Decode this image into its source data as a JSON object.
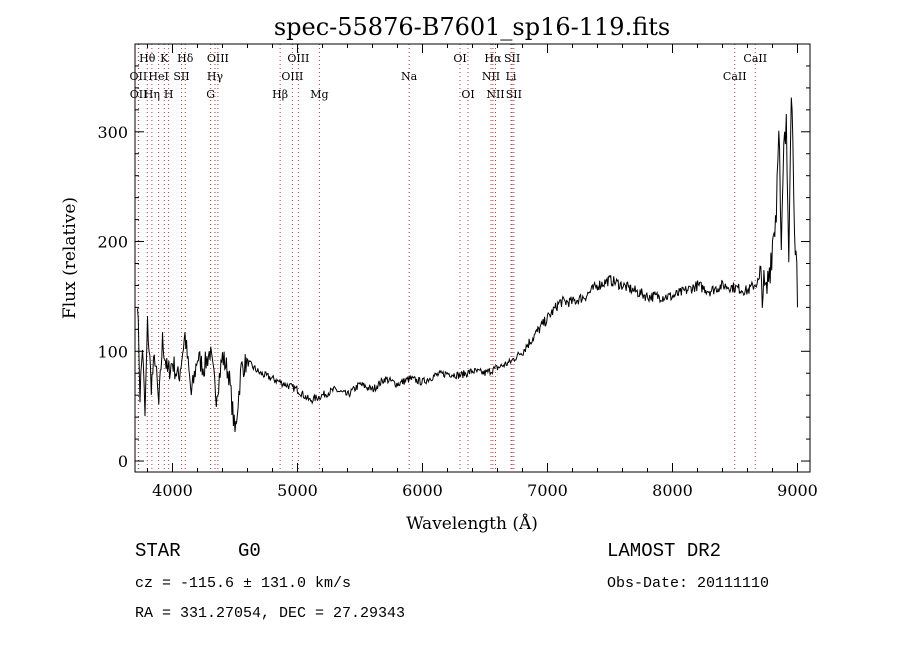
{
  "chart_data": {
    "type": "line",
    "title": "spec-55876-B7601_sp16-119.fits",
    "xlabel": "Wavelength (Å)",
    "ylabel": "Flux (relative)",
    "xlim": [
      3700,
      9100
    ],
    "ylim": [
      -10,
      380
    ],
    "xticks": [
      4000,
      5000,
      6000,
      7000,
      8000,
      9000
    ],
    "yticks": [
      0,
      100,
      200,
      300
    ],
    "series": [
      {
        "name": "flux",
        "x": [
          3720,
          3740,
          3760,
          3780,
          3800,
          3830,
          3860,
          3890,
          3920,
          3960,
          4000,
          4050,
          4100,
          4150,
          4200,
          4250,
          4300,
          4350,
          4400,
          4450,
          4500,
          4550,
          4600,
          4700,
          4800,
          4900,
          5000,
          5100,
          5200,
          5300,
          5400,
          5500,
          5600,
          5700,
          5800,
          5900,
          6000,
          6100,
          6200,
          6300,
          6400,
          6500,
          6600,
          6700,
          6800,
          6900,
          7000,
          7100,
          7200,
          7300,
          7400,
          7500,
          7600,
          7700,
          7800,
          7900,
          8000,
          8100,
          8200,
          8300,
          8400,
          8500,
          8600,
          8700,
          8750,
          8800,
          8830,
          8850,
          8870,
          8890,
          8910,
          8930,
          8950,
          8970,
          9000
        ],
        "values": [
          150,
          60,
          105,
          40,
          125,
          70,
          95,
          50,
          110,
          80,
          90,
          75,
          115,
          60,
          95,
          85,
          100,
          60,
          95,
          80,
          25,
          85,
          90,
          80,
          75,
          70,
          65,
          55,
          60,
          65,
          60,
          70,
          65,
          75,
          70,
          75,
          72,
          78,
          80,
          78,
          82,
          80,
          85,
          90,
          100,
          115,
          130,
          145,
          145,
          150,
          160,
          165,
          160,
          155,
          150,
          150,
          150,
          155,
          160,
          155,
          160,
          158,
          155,
          165,
          150,
          200,
          230,
          320,
          180,
          280,
          300,
          200,
          350,
          250,
          140
        ]
      }
    ],
    "lines": [
      {
        "label": "Hθ",
        "x": 3798,
        "row": 0
      },
      {
        "label": "K",
        "x": 3934,
        "row": 0
      },
      {
        "label": "Hδ",
        "x": 4102,
        "row": 0
      },
      {
        "label": "OIII",
        "x": 4363,
        "row": 0
      },
      {
        "label": "OIII",
        "x": 5007,
        "row": 0
      },
      {
        "label": "OI",
        "x": 6300,
        "row": 0
      },
      {
        "label": "Hα",
        "x": 6563,
        "row": 0
      },
      {
        "label": "SII",
        "x": 6717,
        "row": 0
      },
      {
        "label": "CaII",
        "x": 8662,
        "row": 0
      },
      {
        "label": "OII",
        "x": 3727,
        "row": 1
      },
      {
        "label": "HeI",
        "x": 3889,
        "row": 1
      },
      {
        "label": "SII",
        "x": 4072,
        "row": 1
      },
      {
        "label": "Hγ",
        "x": 4340,
        "row": 1
      },
      {
        "label": "OIII",
        "x": 4959,
        "row": 1
      },
      {
        "label": "Na",
        "x": 5893,
        "row": 1
      },
      {
        "label": "NII",
        "x": 6548,
        "row": 1
      },
      {
        "label": "Li",
        "x": 6708,
        "row": 1
      },
      {
        "label": "CaII",
        "x": 8498,
        "row": 1
      },
      {
        "label": "OII",
        "x": 3729,
        "row": 2
      },
      {
        "label": "Hη",
        "x": 3835,
        "row": 2
      },
      {
        "label": "H",
        "x": 3969,
        "row": 2
      },
      {
        "label": "G",
        "x": 4305,
        "row": 2
      },
      {
        "label": "Hβ",
        "x": 4861,
        "row": 2
      },
      {
        "label": "Mg",
        "x": 5175,
        "row": 2
      },
      {
        "label": "OI",
        "x": 6364,
        "row": 2
      },
      {
        "label": "NII",
        "x": 6584,
        "row": 2
      },
      {
        "label": "SII",
        "x": 6731,
        "row": 2
      }
    ]
  },
  "footer": {
    "class_label": "STAR",
    "subclass": "G0",
    "survey": "LAMOST DR2",
    "redshift": "cz = -115.6 ± 131.0 km/s",
    "obs_date": "Obs-Date: 20111110",
    "coords": "RA = 331.27054, DEC =  27.29343"
  }
}
